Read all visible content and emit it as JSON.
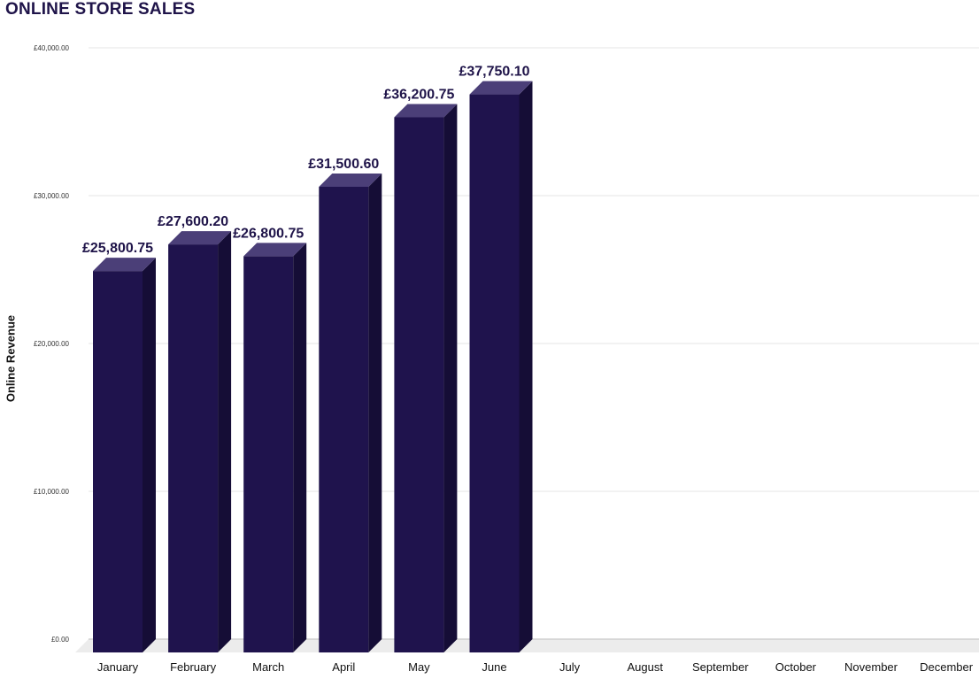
{
  "chart_data": {
    "type": "bar",
    "title": "ONLINE STORE SALES",
    "xlabel": "",
    "ylabel": "Online Revenue",
    "categories": [
      "January",
      "February",
      "March",
      "April",
      "May",
      "June",
      "July",
      "August",
      "September",
      "October",
      "November",
      "December"
    ],
    "values": [
      25800.75,
      27600.2,
      26800.75,
      31500.6,
      36200.75,
      37750.1,
      null,
      null,
      null,
      null,
      null,
      null
    ],
    "data_labels": [
      "£25,800.75",
      "£27,600.20",
      "£26,800.75",
      "£31,500.60",
      "£36,200.75",
      "£37,750.10",
      "",
      "",
      "",
      "",
      "",
      ""
    ],
    "ylim": [
      0,
      40000
    ],
    "yticks": [
      0,
      10000,
      20000,
      30000,
      40000
    ],
    "ytick_labels": [
      "£0.00",
      "£10,000.00",
      "£20,000.00",
      "£30,000.00",
      "£40,000.00"
    ],
    "grid": true,
    "legend": "none",
    "colors": {
      "bar_front": "#1f134d",
      "bar_top": "#4b3f78",
      "bar_side": "#150d36",
      "title": "#1f1449",
      "grid": "#e6e6e6",
      "floor": "#ececec"
    }
  }
}
